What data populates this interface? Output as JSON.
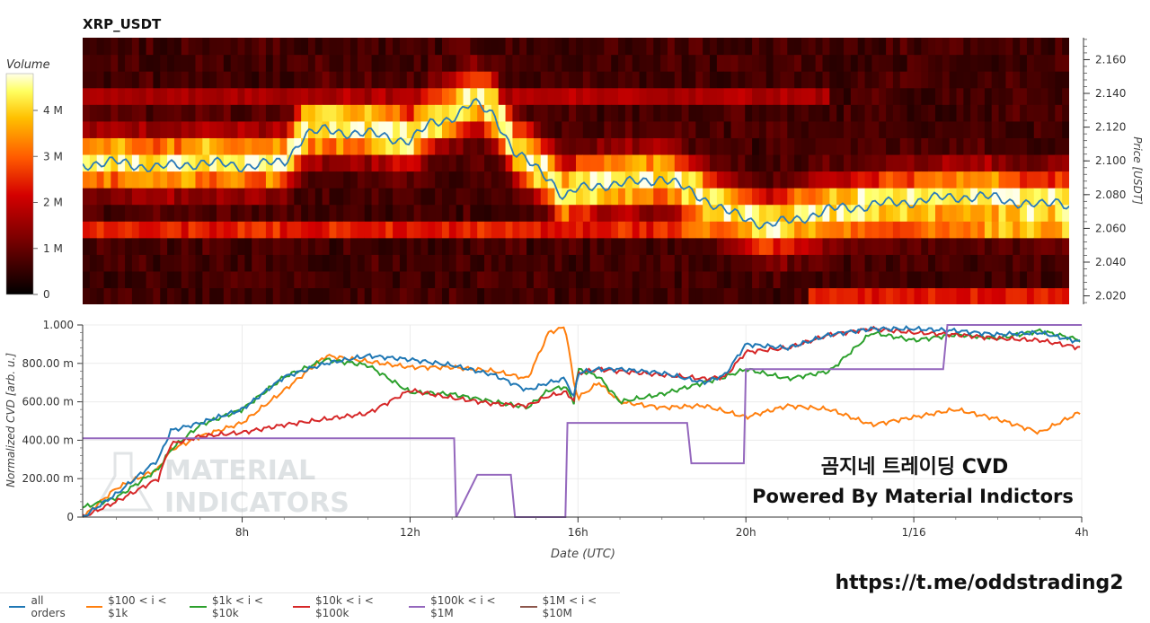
{
  "heatmap_title": "XRP_USDT",
  "colorbar": {
    "title": "Volume",
    "ticks": [
      "0",
      "1 M",
      "2 M",
      "3 M",
      "4 M"
    ],
    "tick_values": [
      0,
      1000000,
      2000000,
      3000000,
      4000000
    ],
    "max": 4800000
  },
  "watermark": {
    "line1": "MATERIAL",
    "line2": "INDICATORS"
  },
  "overlay_text": {
    "line1": "곰지네 트레이딩 CVD",
    "line2": "Powered By Material Indictors"
  },
  "footer_link": "https://t.me/oddstrading2",
  "legend": [
    {
      "label": "all orders",
      "color": "#1f77b4"
    },
    {
      "label": "$100 < i < $1k",
      "color": "#ff7f0e"
    },
    {
      "label": "$1k < i < $10k",
      "color": "#2ca02c"
    },
    {
      "label": "$10k < i < $100k",
      "color": "#d62728"
    },
    {
      "label": "$100k < i < $1M",
      "color": "#9467bd"
    },
    {
      "label": "$1M < i < $10M",
      "color": "#8c564b"
    }
  ],
  "chart_data": [
    {
      "type": "heatmap",
      "title": "XRP_USDT",
      "ylabel": "Price [USDT]",
      "y_ticks": [
        "2.020",
        "2.040",
        "2.060",
        "2.080",
        "2.100",
        "2.120",
        "2.140",
        "2.160"
      ],
      "ylim": [
        2.015,
        2.173
      ],
      "price_bins": [
        2.022,
        2.031,
        2.041,
        2.05,
        2.059,
        2.069,
        2.078,
        2.088,
        2.097,
        2.107,
        2.116,
        2.125,
        2.135,
        2.144,
        2.153,
        2.163
      ],
      "price_line": {
        "time": [
          "04:00",
          "05:00",
          "06:00",
          "07:00",
          "08:00",
          "09:00",
          "09:30",
          "10:00",
          "11:00",
          "12:00",
          "12:30",
          "13:00",
          "13:30",
          "14:00",
          "14:30",
          "15:00",
          "15:20",
          "15:40",
          "16:00",
          "16:30",
          "17:00",
          "18:00",
          "18:30",
          "19:00",
          "19:30",
          "20:00",
          "20:30",
          "21:00",
          "22:00",
          "23:00",
          "00:00",
          "01:00",
          "02:00",
          "03:00",
          "03:30",
          "04:00"
        ],
        "price": [
          2.098,
          2.099,
          2.096,
          2.099,
          2.097,
          2.099,
          2.116,
          2.118,
          2.116,
          2.112,
          2.122,
          2.126,
          2.134,
          2.128,
          2.104,
          2.096,
          2.09,
          2.078,
          2.083,
          2.086,
          2.086,
          2.09,
          2.084,
          2.078,
          2.07,
          2.066,
          2.062,
          2.064,
          2.071,
          2.074,
          2.076,
          2.079,
          2.078,
          2.073,
          2.077,
          2.068
        ]
      }
    },
    {
      "type": "line",
      "xlabel": "Date (UTC)",
      "ylabel": "Normalized CVD [arb. u.]",
      "ylim": [
        0,
        1.0
      ],
      "y_ticks": [
        "0",
        "200.00 m",
        "400.00 m",
        "600.00 m",
        "800.00 m",
        "1.000"
      ],
      "y_tick_values": [
        0,
        0.2,
        0.4,
        0.6,
        0.8,
        1.0
      ],
      "x_ticks": [
        "8h",
        "12h",
        "16h",
        "20h",
        "1/16",
        "4h"
      ],
      "x_tick_hours": [
        8,
        12,
        16,
        20,
        24,
        28
      ],
      "x_range_hours": [
        4.2,
        28
      ],
      "x_hours": [
        4.2,
        5,
        6,
        6.3,
        7,
        8,
        9,
        10,
        11,
        12,
        13,
        14,
        14.8,
        15.3,
        15.7,
        15.9,
        16,
        16.5,
        17,
        18,
        19,
        19.5,
        20,
        21,
        22,
        23,
        24,
        25,
        26,
        27,
        28
      ],
      "series": [
        {
          "name": "all orders",
          "color": "#1f77b4",
          "values": [
            0.0,
            0.12,
            0.3,
            0.45,
            0.49,
            0.56,
            0.73,
            0.8,
            0.84,
            0.82,
            0.79,
            0.74,
            0.66,
            0.7,
            0.72,
            0.62,
            0.75,
            0.77,
            0.77,
            0.75,
            0.7,
            0.74,
            0.9,
            0.88,
            0.95,
            0.98,
            0.98,
            0.97,
            0.95,
            0.96,
            0.91
          ]
        },
        {
          "name": "$100 < i < $1k",
          "color": "#ff7f0e",
          "values": [
            0.0,
            0.15,
            0.25,
            0.35,
            0.42,
            0.49,
            0.66,
            0.84,
            0.81,
            0.78,
            0.78,
            0.76,
            0.72,
            0.96,
            0.99,
            0.7,
            0.62,
            0.7,
            0.6,
            0.57,
            0.58,
            0.55,
            0.52,
            0.58,
            0.56,
            0.48,
            0.52,
            0.56,
            0.51,
            0.44,
            0.55
          ]
        },
        {
          "name": "$1k < i < $10k",
          "color": "#2ca02c",
          "values": [
            0.05,
            0.1,
            0.25,
            0.35,
            0.48,
            0.56,
            0.73,
            0.82,
            0.79,
            0.65,
            0.64,
            0.6,
            0.57,
            0.66,
            0.68,
            0.6,
            0.77,
            0.73,
            0.6,
            0.64,
            0.7,
            0.73,
            0.77,
            0.72,
            0.76,
            0.96,
            0.92,
            0.95,
            0.93,
            0.97,
            0.92
          ]
        },
        {
          "name": "$10k < i < $100k",
          "color": "#d62728",
          "values": [
            0.0,
            0.08,
            0.2,
            0.38,
            0.42,
            0.44,
            0.48,
            0.51,
            0.54,
            0.66,
            0.62,
            0.59,
            0.58,
            0.63,
            0.65,
            0.61,
            0.75,
            0.77,
            0.76,
            0.74,
            0.72,
            0.73,
            0.86,
            0.88,
            0.95,
            0.98,
            0.96,
            0.95,
            0.93,
            0.92,
            0.88
          ]
        },
        {
          "name": "$100k < i < $1M",
          "color": "#9467bd",
          "values": [
            0.41,
            0.41,
            0.41,
            0.41,
            0.41,
            0.41,
            0.41,
            0.41,
            0.41,
            0.41,
            0.41,
            0.0,
            0.22,
            0.0,
            0.0,
            0.0,
            0.49,
            0.49,
            0.49,
            0.49,
            0.28,
            0.28,
            0.77,
            0.77,
            0.77,
            0.77,
            0.77,
            1.0,
            1.0,
            1.0,
            1.0
          ]
        },
        {
          "name": "$1M < i < $10M",
          "color": "#8c564b",
          "values": []
        }
      ],
      "step_series": [
        "$100k < i < $1M"
      ],
      "step_hours": [
        4.2,
        13.05,
        13.1,
        13.6,
        14.4,
        14.5,
        15.7,
        15.75,
        18.6,
        18.7,
        19.95,
        20.0,
        24.7,
        24.8,
        28
      ],
      "step_values": [
        0.41,
        0.41,
        0.0,
        0.22,
        0.22,
        0.0,
        0.0,
        0.49,
        0.49,
        0.28,
        0.28,
        0.77,
        0.77,
        1.0,
        1.0
      ]
    }
  ]
}
